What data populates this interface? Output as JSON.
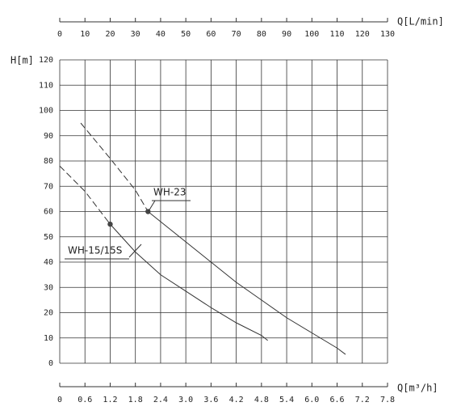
{
  "chart_data": {
    "type": "line",
    "ylabel": "H[m]",
    "xlabel": "Q[m³/h]",
    "x2label": "Q[L/min]",
    "xlim": [
      0,
      7.8
    ],
    "xticks": [
      0,
      0.6,
      1.2,
      1.8,
      2.4,
      {
        "value": 3,
        "label": "3.0"
      },
      3.6,
      4.2,
      4.8,
      5.4,
      {
        "value": 6,
        "label": "6.0"
      },
      6.6,
      7.2,
      7.8
    ],
    "x2lim": [
      0,
      130
    ],
    "x2ticks": [
      0,
      10,
      20,
      30,
      40,
      50,
      60,
      70,
      80,
      90,
      100,
      110,
      120,
      130
    ],
    "ylim": [
      0,
      120
    ],
    "yticks": [
      0,
      10,
      20,
      30,
      40,
      50,
      60,
      70,
      80,
      90,
      100,
      110,
      120
    ],
    "grid": true,
    "color": "#333333",
    "series": [
      {
        "name": "WH-15/15S",
        "dash_to": 1.2,
        "x": [
          0,
          0.6,
          1.2,
          1.8,
          2.4,
          3.0,
          3.6,
          4.2,
          4.8,
          4.95
        ],
        "values": [
          78,
          68,
          55,
          44,
          35,
          28.5,
          22,
          16,
          11,
          9
        ]
      },
      {
        "name": "WH-23",
        "dash_to": 2.1,
        "x": [
          0.5,
          1.2,
          1.8,
          2.1,
          2.4,
          3.0,
          3.6,
          4.2,
          4.8,
          5.4,
          6.0,
          6.6,
          6.8
        ],
        "values": [
          95,
          81,
          68.5,
          60,
          56,
          48,
          40,
          32,
          25,
          18,
          12,
          6,
          3.5
        ]
      }
    ]
  }
}
